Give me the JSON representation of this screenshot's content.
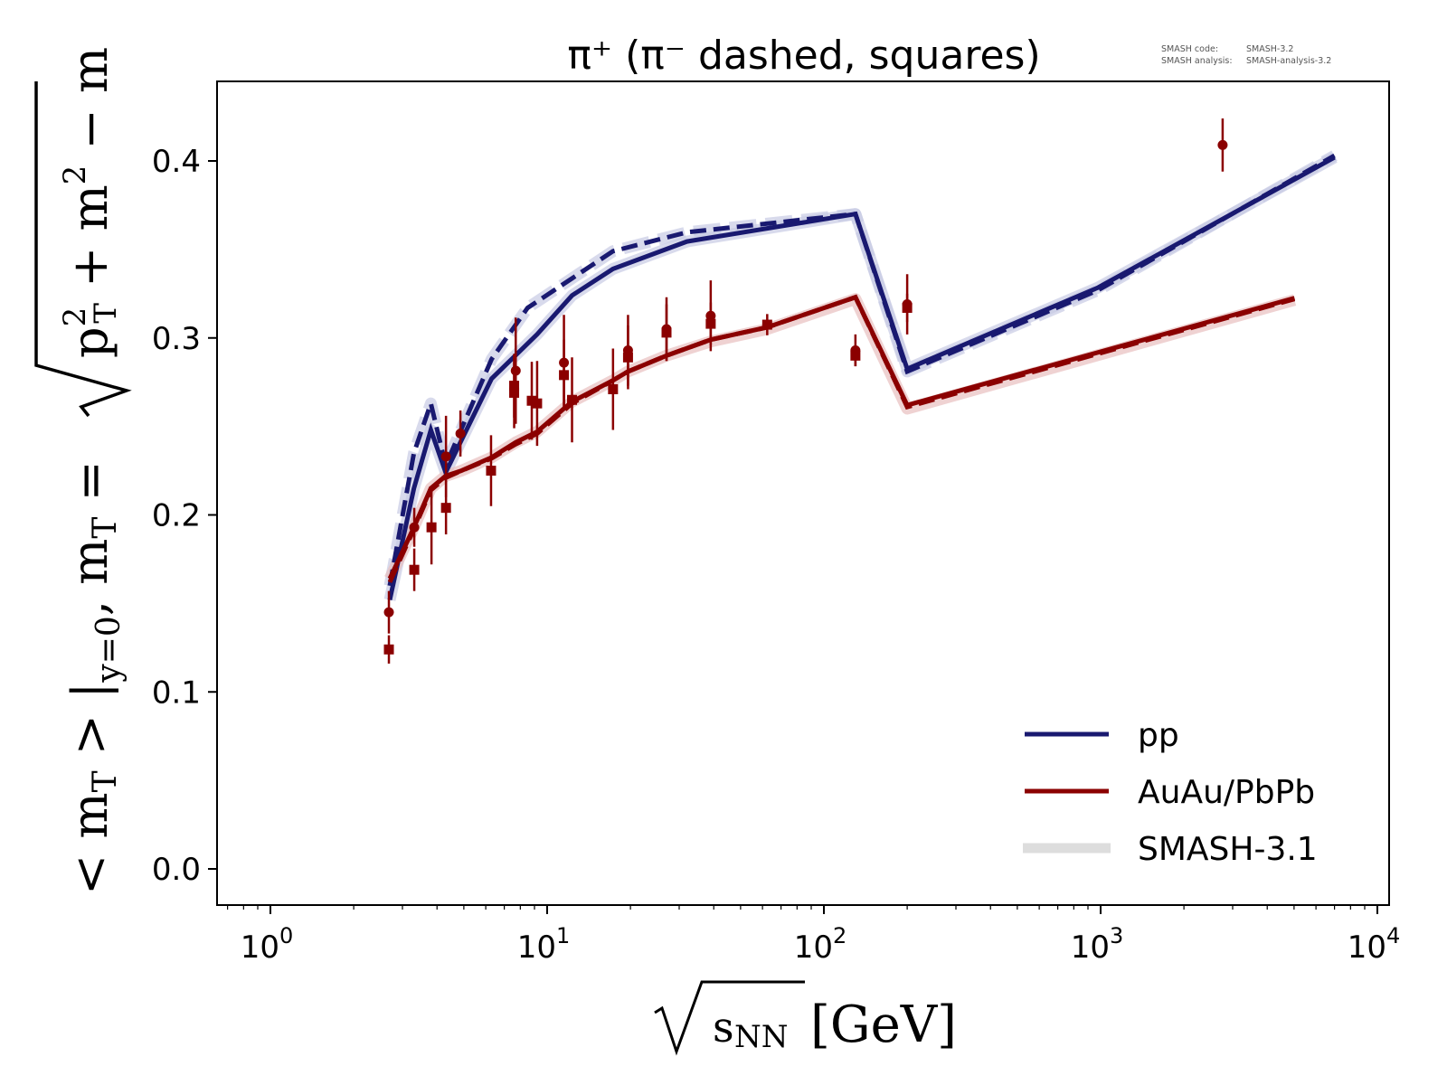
{
  "chart_data": {
    "type": "line",
    "title": "π⁺ (π⁻ dashed, squares)",
    "xlabel": "√s_NN [GeV]",
    "xlabel_parts": {
      "sqrt_arg": "s",
      "sub": "NN",
      "unit": "[GeV]"
    },
    "ylabel": "<m_T>|_{y=0}, m_T = √(p_T² + m²) − m",
    "ylabel_parts": {
      "left": "< m",
      "sub_T1": "T",
      "mid": " > |",
      "sub_y0": "y=0",
      "comma": ",  m",
      "sub_T2": "T",
      "eq": " = ",
      "p": "p",
      "sup2a": "2",
      "sub_T3": "T",
      "plus": " + m",
      "sup2b": "2",
      "minus": " − m"
    },
    "xscale": "log",
    "xlim": [
      0.65,
      11000
    ],
    "ylim": [
      -0.0204,
      0.445
    ],
    "xticks": [
      {
        "value": 1,
        "base": "10",
        "exp": "0"
      },
      {
        "value": 10,
        "base": "10",
        "exp": "1"
      },
      {
        "value": 100,
        "base": "10",
        "exp": "2"
      },
      {
        "value": 1000,
        "base": "10",
        "exp": "3"
      },
      {
        "value": 10000,
        "base": "10",
        "exp": "4"
      }
    ],
    "yticks": [
      {
        "value": 0.0,
        "label": "0.0"
      },
      {
        "value": 0.1,
        "label": "0.1"
      },
      {
        "value": 0.2,
        "label": "0.2"
      },
      {
        "value": 0.3,
        "label": "0.3"
      },
      {
        "value": 0.4,
        "label": "0.4"
      }
    ],
    "grid": false,
    "legend_position": "lower-right",
    "legend": [
      {
        "label": "pp",
        "color": "#191970",
        "style": "solid"
      },
      {
        "label": "AuAu/PbPb",
        "color": "#8b0000",
        "style": "solid"
      },
      {
        "label": "SMASH-3.1",
        "color": "#dddddd",
        "style": "band"
      }
    ],
    "series": [
      {
        "name": "pp π⁺ (SMASH-3.1 reference)",
        "color": "#c8cae4",
        "style": "band",
        "x": [
          2.7,
          3.3,
          3.8,
          4.3,
          6.3,
          9.2,
          12.3,
          17.3,
          32,
          130,
          200,
          980,
          7000
        ],
        "y": [
          0.152,
          0.215,
          0.248,
          0.224,
          0.277,
          0.302,
          0.324,
          0.339,
          0.3545,
          0.37,
          0.2825,
          0.3285,
          0.402
        ]
      },
      {
        "name": "pp π⁻ (SMASH-3.1 reference)",
        "color": "#c8cae4",
        "style": "band",
        "x": [
          2.7,
          3.3,
          3.8,
          4.3,
          6.3,
          8.5,
          17.3,
          32,
          130,
          200,
          980,
          7000
        ],
        "y": [
          0.16,
          0.235,
          0.263,
          0.228,
          0.288,
          0.317,
          0.349,
          0.3597,
          0.37,
          0.281,
          0.327,
          0.403
        ]
      },
      {
        "name": "AuAu/PbPb (SMASH-3.1 reference)",
        "color": "#e8bfbf",
        "style": "band",
        "x": [
          2.7,
          3.3,
          3.8,
          4.3,
          4.9,
          6.3,
          7.7,
          9.2,
          12.3,
          17.3,
          19.6,
          27,
          39,
          62.4,
          130,
          200,
          5020
        ],
        "y": [
          0.164,
          0.193,
          0.215,
          0.222,
          0.225,
          0.2325,
          0.241,
          0.247,
          0.264,
          0.276,
          0.281,
          0.29,
          0.298,
          0.305,
          0.322,
          0.26,
          0.3215
        ]
      },
      {
        "name": "pp π⁺",
        "color": "#191970",
        "style": "solid",
        "x": [
          2.7,
          3.3,
          3.8,
          4.3,
          6.3,
          9.2,
          12.3,
          17.3,
          32,
          130,
          200,
          980,
          7000
        ],
        "y": [
          0.152,
          0.215,
          0.248,
          0.224,
          0.277,
          0.302,
          0.324,
          0.339,
          0.3545,
          0.37,
          0.2825,
          0.3285,
          0.402
        ]
      },
      {
        "name": "pp π⁻",
        "color": "#191970",
        "style": "dashed",
        "x": [
          2.7,
          3.3,
          3.8,
          4.3,
          6.3,
          8.5,
          17.3,
          32,
          130,
          200,
          980,
          7000
        ],
        "y": [
          0.16,
          0.235,
          0.263,
          0.228,
          0.288,
          0.317,
          0.349,
          0.3597,
          0.37,
          0.281,
          0.327,
          0.403
        ]
      },
      {
        "name": "AuAu/PbPb π⁺",
        "color": "#8b0000",
        "style": "solid",
        "x": [
          2.7,
          3.3,
          3.8,
          4.3,
          4.9,
          6.3,
          7.7,
          9.2,
          12.3,
          17.3,
          19.6,
          27,
          39,
          62.4,
          130,
          200,
          5020
        ],
        "y": [
          0.164,
          0.193,
          0.215,
          0.222,
          0.225,
          0.2325,
          0.241,
          0.247,
          0.264,
          0.276,
          0.281,
          0.29,
          0.299,
          0.306,
          0.323,
          0.262,
          0.3225
        ]
      },
      {
        "name": "AuAu/PbPb π⁻",
        "color": "#8b0000",
        "style": "dashed",
        "x": [
          2.7,
          3.3,
          3.8,
          4.3,
          4.9,
          6.3,
          7.7,
          9.2,
          12.3,
          17.3,
          19.6,
          27,
          39,
          62.4,
          130,
          200,
          5020
        ],
        "y": [
          0.162,
          0.192,
          0.214,
          0.221,
          0.225,
          0.232,
          0.24,
          0.246,
          0.263,
          0.276,
          0.281,
          0.29,
          0.299,
          0.306,
          0.323,
          0.261,
          0.322
        ]
      }
    ],
    "experimental_data": {
      "color": "#8b0000",
      "pi_plus_circles": [
        {
          "x": 2.68,
          "y": 0.145,
          "err": 0.012
        },
        {
          "x": 3.31,
          "y": 0.193,
          "err": 0.011
        },
        {
          "x": 4.31,
          "y": 0.233,
          "err": 0.023
        },
        {
          "x": 4.86,
          "y": 0.246,
          "err": 0.013
        },
        {
          "x": 7.7,
          "y": 0.2815,
          "err": 0.03
        },
        {
          "x": 11.5,
          "y": 0.286,
          "err": 0.027
        },
        {
          "x": 19.6,
          "y": 0.293,
          "err": 0.02
        },
        {
          "x": 27.0,
          "y": 0.305,
          "err": 0.018
        },
        {
          "x": 39.0,
          "y": 0.3125,
          "err": 0.02
        },
        {
          "x": 130,
          "y": 0.293,
          "err": 0.009
        },
        {
          "x": 200,
          "y": 0.319,
          "err": 0.017
        },
        {
          "x": 2760,
          "y": 0.409,
          "err": 0.015
        }
      ],
      "pi_minus_squares": [
        {
          "x": 2.68,
          "y": 0.124,
          "err": 0.008
        },
        {
          "x": 3.31,
          "y": 0.169,
          "err": 0.012
        },
        {
          "x": 3.82,
          "y": 0.193,
          "err": 0.021
        },
        {
          "x": 4.31,
          "y": 0.204,
          "err": 0.015
        },
        {
          "x": 6.27,
          "y": 0.225,
          "err": 0.02
        },
        {
          "x": 7.6,
          "y": 0.273,
          "err": 0.018
        },
        {
          "x": 7.6,
          "y": 0.269,
          "err": 0.02
        },
        {
          "x": 8.8,
          "y": 0.2645,
          "err": 0.022
        },
        {
          "x": 9.2,
          "y": 0.263,
          "err": 0.024
        },
        {
          "x": 11.5,
          "y": 0.279,
          "err": 0.02
        },
        {
          "x": 12.3,
          "y": 0.265,
          "err": 0.024
        },
        {
          "x": 17.3,
          "y": 0.271,
          "err": 0.023
        },
        {
          "x": 19.6,
          "y": 0.289,
          "err": 0.018
        },
        {
          "x": 27.0,
          "y": 0.303,
          "err": 0.016
        },
        {
          "x": 39.0,
          "y": 0.308,
          "err": 0.012
        },
        {
          "x": 62.4,
          "y": 0.3075,
          "err": 0.006
        },
        {
          "x": 130,
          "y": 0.29,
          "err": 0.006
        },
        {
          "x": 200,
          "y": 0.317,
          "err": 0.008
        }
      ]
    }
  },
  "version_info": {
    "line1_label": "SMASH code:",
    "line1_value": "SMASH-3.2",
    "line2_label": "SMASH analysis:",
    "line2_value": "SMASH-analysis-3.2"
  }
}
